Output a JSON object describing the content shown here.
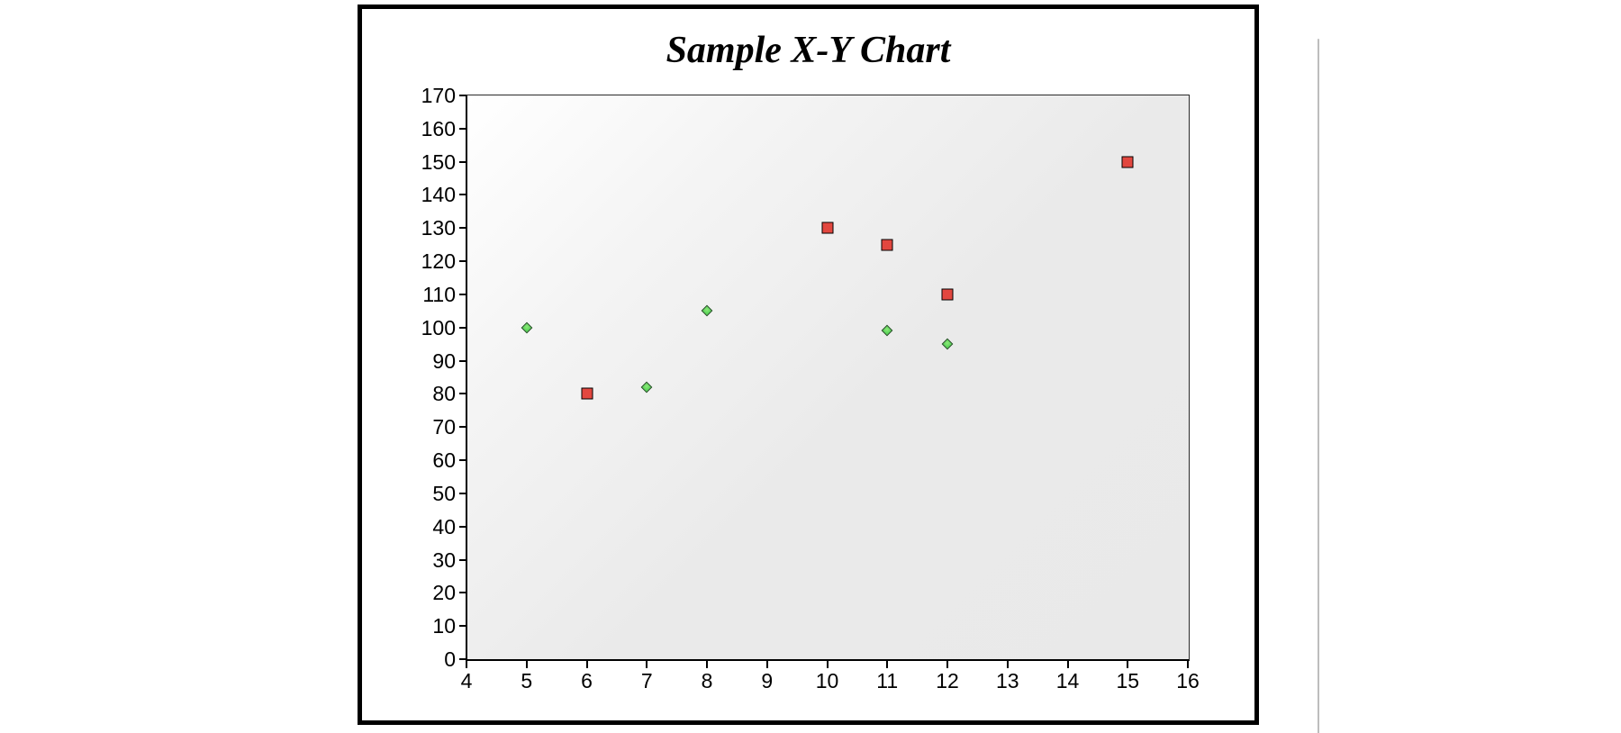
{
  "chart_data": {
    "type": "scatter",
    "title": "Sample X-Y Chart",
    "xlabel": "",
    "ylabel": "",
    "xlim": [
      4,
      16
    ],
    "ylim": [
      0,
      170
    ],
    "x_ticks": [
      4,
      5,
      6,
      7,
      8,
      9,
      10,
      11,
      12,
      13,
      14,
      15,
      16
    ],
    "y_ticks": [
      0,
      10,
      20,
      30,
      40,
      50,
      60,
      70,
      80,
      90,
      100,
      110,
      120,
      130,
      140,
      150,
      160,
      170
    ],
    "grid": false,
    "legend_position": "none",
    "plot_background": "diagonal gradient #ffffff to #e9e9e9",
    "series": [
      {
        "name": "green diamond series",
        "marker": "diamond",
        "fill_color": "#55d455",
        "border_color": "#1c4a1c",
        "points": [
          [
            5,
            100
          ],
          [
            7,
            82
          ],
          [
            8,
            105
          ],
          [
            11,
            99
          ],
          [
            12,
            95
          ]
        ]
      },
      {
        "name": "red square series",
        "marker": "square",
        "fill_color": "#e2473f",
        "border_color": "#000000",
        "points": [
          [
            6,
            80
          ],
          [
            10,
            130
          ],
          [
            11,
            125
          ],
          [
            12,
            110
          ],
          [
            15,
            150
          ]
        ]
      }
    ]
  }
}
